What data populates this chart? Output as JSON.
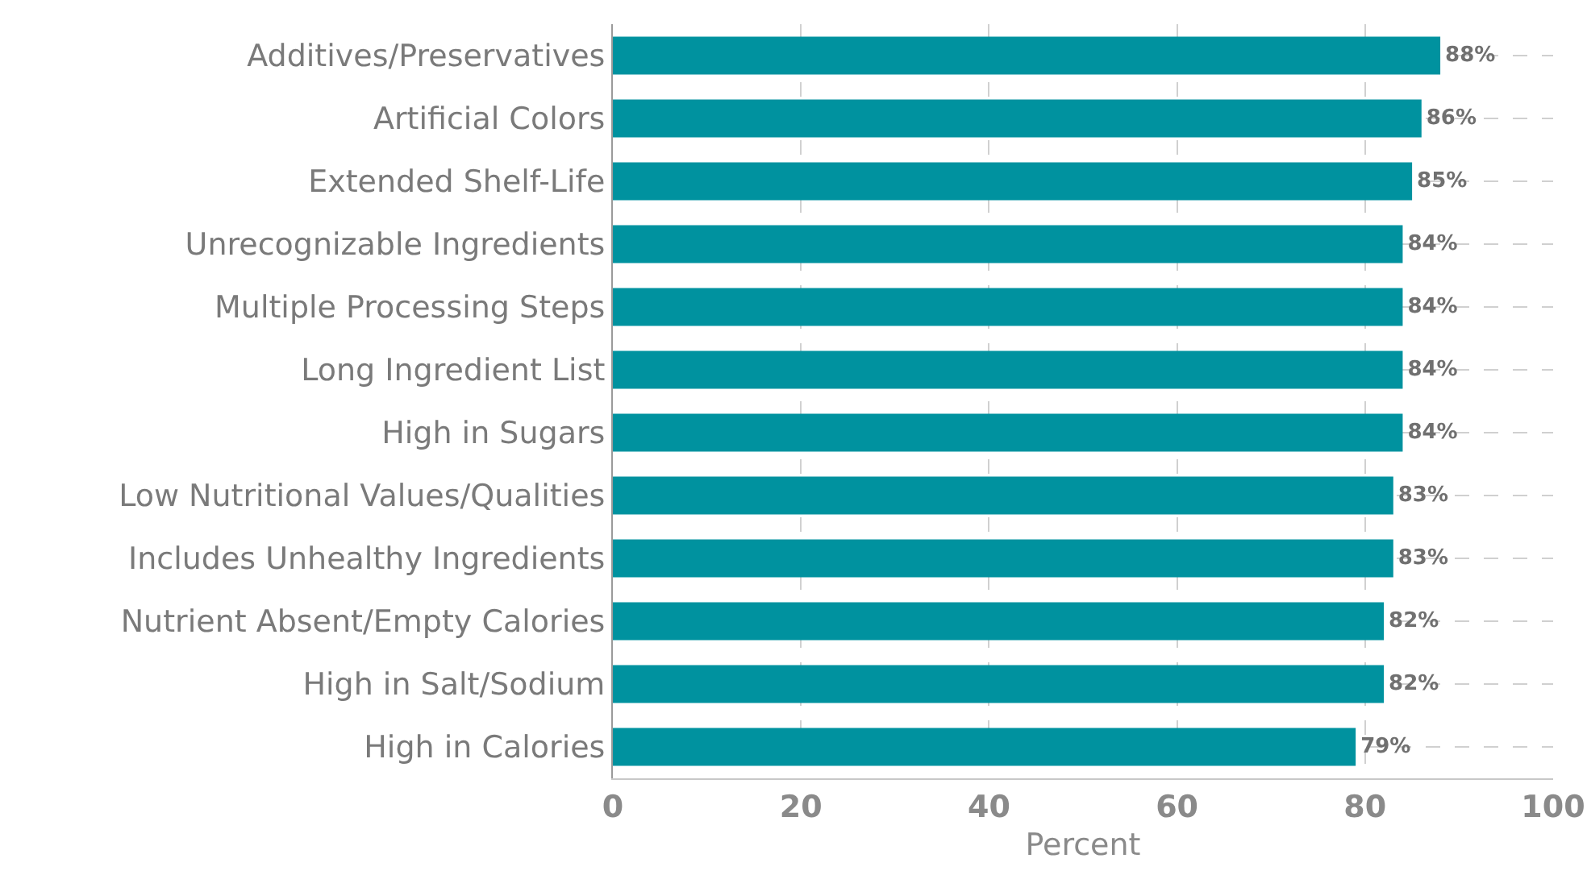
{
  "chart_data": {
    "type": "bar",
    "orientation": "horizontal",
    "xlabel": "Percent",
    "categories": [
      "Additives/Preservatives",
      "Artificial Colors",
      "Extended Shelf-Life",
      "Unrecognizable Ingredients",
      "Multiple Processing Steps",
      "Long Ingredient List",
      "High in Sugars",
      "Low Nutritional Values/Qualities",
      "Includes Unhealthy Ingredients",
      "Nutrient Absent/Empty Calories",
      "High in Salt/Sodium",
      "High in Calories"
    ],
    "values": [
      88,
      86,
      85,
      84,
      84,
      84,
      84,
      83,
      83,
      82,
      82,
      79
    ],
    "value_labels": [
      "88%",
      "86%",
      "85%",
      "84%",
      "84%",
      "84%",
      "84%",
      "83%",
      "83%",
      "82%",
      "82%",
      "79%"
    ],
    "color": "#00929f",
    "xlim": [
      0,
      100
    ],
    "xticks": [
      0,
      20,
      40,
      60,
      80,
      100
    ],
    "grid": true
  }
}
